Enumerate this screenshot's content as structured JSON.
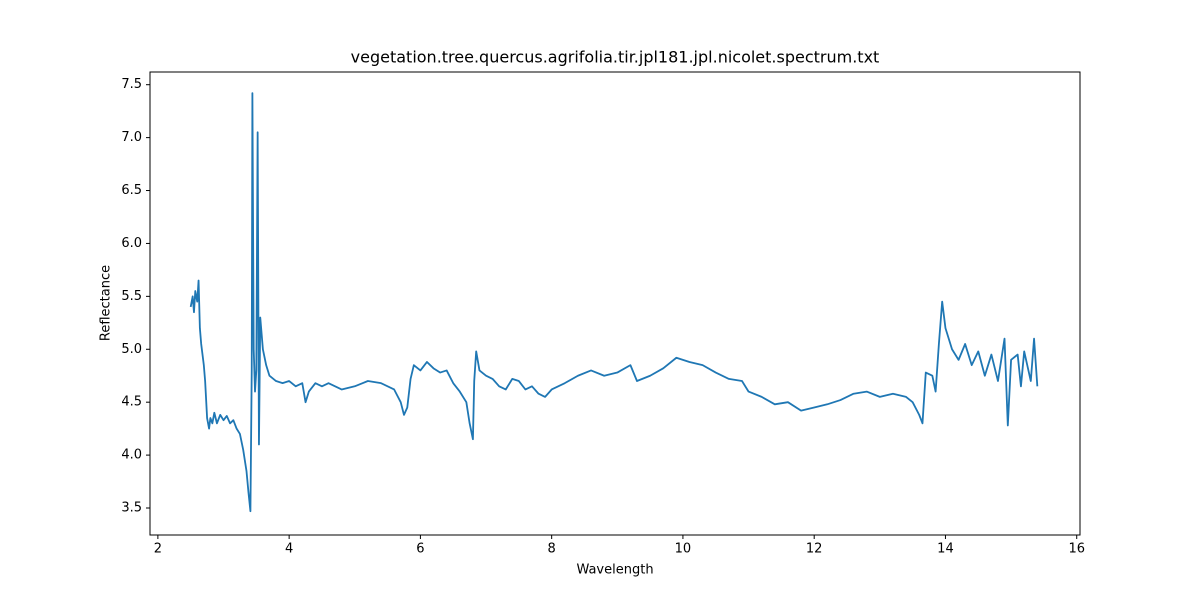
{
  "chart_data": {
    "type": "line",
    "title": "vegetation.tree.quercus.agrifolia.tir.jpl181.jpl.nicolet.spectrum.txt",
    "x_label": "Wavelength",
    "y_label": "Reflectance",
    "color": "#1f77b4",
    "x": [
      2.5,
      2.53,
      2.55,
      2.57,
      2.6,
      2.62,
      2.64,
      2.66,
      2.7,
      2.72,
      2.75,
      2.78,
      2.8,
      2.83,
      2.86,
      2.9,
      2.95,
      3.0,
      3.05,
      3.1,
      3.15,
      3.2,
      3.25,
      3.3,
      3.35,
      3.38,
      3.41,
      3.43,
      3.44,
      3.46,
      3.48,
      3.5,
      3.52,
      3.54,
      3.56,
      3.6,
      3.65,
      3.7,
      3.8,
      3.9,
      4.0,
      4.1,
      4.2,
      4.25,
      4.3,
      4.4,
      4.5,
      4.6,
      4.8,
      5.0,
      5.2,
      5.4,
      5.6,
      5.7,
      5.75,
      5.8,
      5.85,
      5.9,
      6.0,
      6.1,
      6.2,
      6.3,
      6.4,
      6.5,
      6.6,
      6.7,
      6.75,
      6.8,
      6.82,
      6.85,
      6.9,
      7.0,
      7.1,
      7.2,
      7.3,
      7.4,
      7.5,
      7.6,
      7.7,
      7.8,
      7.9,
      8.0,
      8.2,
      8.4,
      8.6,
      8.8,
      9.0,
      9.2,
      9.3,
      9.5,
      9.7,
      9.9,
      10.1,
      10.3,
      10.5,
      10.7,
      10.9,
      11.0,
      11.2,
      11.4,
      11.6,
      11.8,
      12.0,
      12.2,
      12.4,
      12.6,
      12.8,
      13.0,
      13.2,
      13.4,
      13.5,
      13.6,
      13.65,
      13.7,
      13.8,
      13.85,
      13.9,
      13.95,
      14.0,
      14.1,
      14.2,
      14.3,
      14.4,
      14.5,
      14.6,
      14.7,
      14.8,
      14.9,
      14.95,
      15.0,
      15.1,
      15.15,
      15.2,
      15.3,
      15.35,
      15.4
    ],
    "values": [
      5.4,
      5.5,
      5.35,
      5.55,
      5.45,
      5.65,
      5.2,
      5.05,
      4.85,
      4.7,
      4.35,
      4.25,
      4.35,
      4.3,
      4.4,
      4.3,
      4.38,
      4.33,
      4.37,
      4.3,
      4.33,
      4.25,
      4.2,
      4.05,
      3.85,
      3.65,
      3.47,
      4.8,
      7.42,
      5.0,
      4.6,
      4.8,
      7.05,
      4.1,
      5.3,
      5.0,
      4.85,
      4.75,
      4.7,
      4.68,
      4.7,
      4.65,
      4.68,
      4.5,
      4.6,
      4.68,
      4.65,
      4.68,
      4.62,
      4.65,
      4.7,
      4.68,
      4.62,
      4.5,
      4.38,
      4.45,
      4.72,
      4.85,
      4.8,
      4.88,
      4.82,
      4.78,
      4.8,
      4.68,
      4.6,
      4.5,
      4.3,
      4.15,
      4.7,
      4.98,
      4.8,
      4.75,
      4.72,
      4.65,
      4.62,
      4.72,
      4.7,
      4.62,
      4.65,
      4.58,
      4.55,
      4.62,
      4.68,
      4.75,
      4.8,
      4.75,
      4.78,
      4.85,
      4.7,
      4.75,
      4.82,
      4.92,
      4.88,
      4.85,
      4.78,
      4.72,
      4.7,
      4.6,
      4.55,
      4.48,
      4.5,
      4.42,
      4.45,
      4.48,
      4.52,
      4.58,
      4.6,
      4.55,
      4.58,
      4.55,
      4.5,
      4.38,
      4.3,
      4.78,
      4.75,
      4.6,
      5.05,
      5.45,
      5.2,
      5.0,
      4.9,
      5.05,
      4.85,
      4.98,
      4.75,
      4.95,
      4.7,
      5.1,
      4.28,
      4.9,
      4.95,
      4.65,
      4.98,
      4.7,
      5.1,
      4.65
    ],
    "xlim": [
      1.88,
      16.05
    ],
    "ylim": [
      3.245,
      7.62
    ],
    "xticks": [
      2,
      4,
      6,
      8,
      10,
      12,
      14,
      16
    ],
    "yticks": [
      3.5,
      {
        "value": 4,
        "label": "4.0"
      },
      4.5,
      {
        "value": 5,
        "label": "5.0"
      },
      5.5,
      {
        "value": 6,
        "label": "6.0"
      },
      6.5,
      {
        "value": 7,
        "label": "7.0"
      },
      7.5
    ]
  }
}
